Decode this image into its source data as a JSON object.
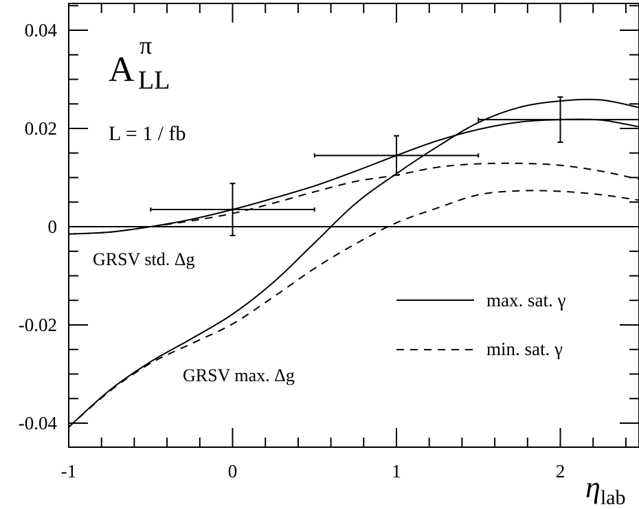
{
  "chart_data": {
    "type": "line",
    "xlabel_main": "η",
    "xlabel_sub": "lab",
    "ylabel": "",
    "xlim": [
      -1,
      2.5
    ],
    "ylim": [
      -0.045,
      0.045
    ],
    "x_ticks": [
      {
        "value": -1,
        "label": "-1"
      },
      {
        "value": 0,
        "label": "0"
      },
      {
        "value": 1,
        "label": "1"
      },
      {
        "value": 2,
        "label": "2"
      }
    ],
    "y_ticks": [
      {
        "value": -0.04,
        "label": "-0.04"
      },
      {
        "value": -0.02,
        "label": "-0.02"
      },
      {
        "value": 0,
        "label": "0"
      },
      {
        "value": 0.02,
        "label": "0.02"
      },
      {
        "value": 0.04,
        "label": "0.04"
      }
    ],
    "annotations": {
      "quantity_main": "A",
      "quantity_sup": "π",
      "quantity_sub": "LL",
      "luminosity": "L = 1 / fb",
      "grsv_std": "GRSV std. Δg",
      "grsv_max": "GRSV max. Δg"
    },
    "legend": {
      "position": "lower-right",
      "entries": [
        {
          "label": "max. sat. γ",
          "style": "solid"
        },
        {
          "label": "min. sat. γ",
          "style": "dashed"
        }
      ]
    },
    "series": [
      {
        "style": "solid",
        "x": [
          -1.0,
          -0.75,
          -0.5,
          -0.25,
          0.0,
          0.25,
          0.5,
          0.75,
          1.0,
          1.25,
          1.5,
          1.75,
          2.0,
          2.25,
          2.5
        ],
        "y": [
          -0.0015,
          -0.0011,
          0.0,
          0.0015,
          0.0035,
          0.0058,
          0.0083,
          0.0113,
          0.0145,
          0.0175,
          0.0198,
          0.0213,
          0.0218,
          0.0217,
          0.0202
        ]
      },
      {
        "style": "dashed",
        "x": [
          -1.0,
          -0.75,
          -0.5,
          -0.25,
          0.0,
          0.25,
          0.5,
          0.75,
          1.0,
          1.25,
          1.5,
          1.75,
          2.0,
          2.25,
          2.5
        ],
        "y": [
          -0.0015,
          -0.0011,
          0.0,
          0.0012,
          0.0027,
          0.0048,
          0.0071,
          0.0092,
          0.0105,
          0.0121,
          0.0128,
          0.0129,
          0.0125,
          0.0113,
          0.0095
        ]
      },
      {
        "style": "solid",
        "x": [
          -1.0,
          -0.75,
          -0.5,
          -0.25,
          0.0,
          0.25,
          0.5,
          0.75,
          1.0,
          1.25,
          1.5,
          1.75,
          2.0,
          2.25,
          2.5
        ],
        "y": [
          -0.0408,
          -0.0333,
          -0.0275,
          -0.0228,
          -0.0178,
          -0.0113,
          -0.0033,
          0.0047,
          0.0108,
          0.0163,
          0.0212,
          0.0243,
          0.0256,
          0.0258,
          0.0241
        ]
      },
      {
        "style": "dashed",
        "x": [
          -1.0,
          -0.75,
          -0.5,
          -0.25,
          0.0,
          0.25,
          0.5,
          0.75,
          1.0,
          1.25,
          1.5,
          1.75,
          2.0,
          2.25,
          2.5
        ],
        "y": [
          -0.0408,
          -0.0335,
          -0.0278,
          -0.0238,
          -0.0198,
          -0.0143,
          -0.0085,
          -0.0035,
          0.0008,
          0.0038,
          0.0065,
          0.0073,
          0.0072,
          0.0065,
          0.0053
        ]
      }
    ],
    "error_bars": [
      {
        "x": 0.0,
        "y": 0.0035,
        "xerr": 0.5,
        "yerr": 0.0053
      },
      {
        "x": 1.0,
        "y": 0.0145,
        "xerr": 0.5,
        "yerr": 0.004
      },
      {
        "x": 2.0,
        "y": 0.0218,
        "xerr": 0.5,
        "yerr": 0.0046
      }
    ]
  }
}
